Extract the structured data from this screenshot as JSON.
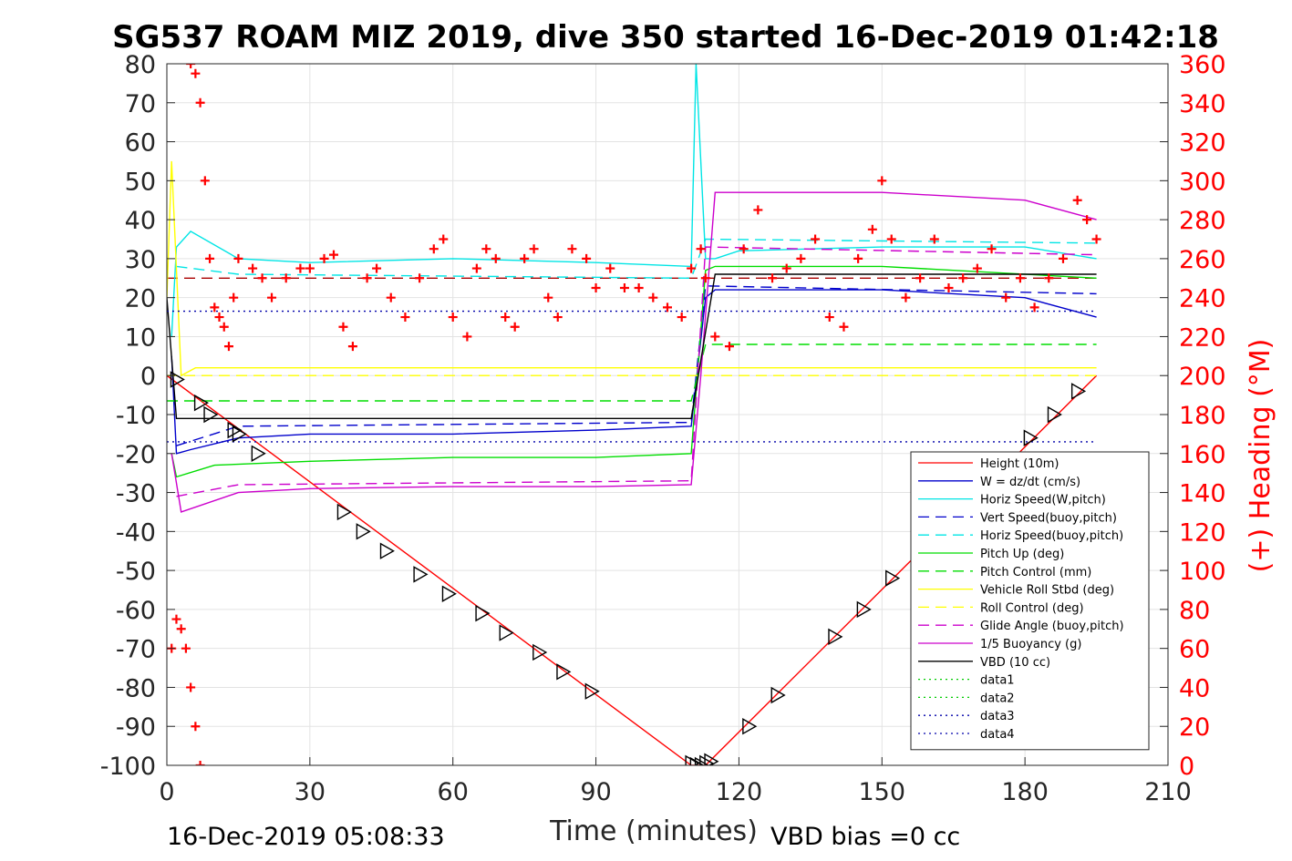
{
  "chart_data": {
    "type": "line",
    "title": "SG537 ROAM MIZ 2019, dive 350 started 16-Dec-2019 01:42:18",
    "xlabel": "Time (minutes)",
    "ylabel": "",
    "y2label": "(+) Heading (°M)",
    "xlim": [
      0,
      210
    ],
    "ylim": [
      -100,
      80
    ],
    "y2lim": [
      0,
      360
    ],
    "xticks": [
      0,
      30,
      60,
      90,
      120,
      150,
      180,
      210
    ],
    "yticks": [
      80,
      70,
      60,
      50,
      40,
      30,
      20,
      10,
      0,
      -10,
      -20,
      -30,
      -40,
      -50,
      -60,
      -70,
      -80,
      -90,
      -100
    ],
    "y2ticks": [
      360,
      340,
      320,
      300,
      280,
      260,
      240,
      220,
      200,
      180,
      160,
      140,
      120,
      100,
      80,
      60,
      40,
      20,
      0
    ],
    "grid": true,
    "legend_position": "bottom-right",
    "footer_left": "16-Dec-2019 05:08:33",
    "footer_right": "VBD bias =0 cc",
    "series": [
      {
        "name": "Height (10m)",
        "color": "#ff0000",
        "style": "solid",
        "x": [
          0,
          110,
          111,
          113,
          195
        ],
        "y": [
          0,
          -100,
          -100,
          -100,
          0
        ]
      },
      {
        "name": "W = dz/dt (cm/s)",
        "color": "#0000cc",
        "style": "solid",
        "x": [
          1,
          2,
          5,
          15,
          30,
          60,
          90,
          110,
          113,
          115,
          120,
          150,
          180,
          195
        ],
        "y": [
          5,
          -20,
          -19,
          -16,
          -15,
          -15,
          -14,
          -13,
          20,
          22,
          22,
          22,
          20,
          15
        ]
      },
      {
        "name": "Horiz Speed(W,pitch)",
        "color": "#00e5e5",
        "style": "solid",
        "x": [
          1,
          2,
          5,
          15,
          30,
          60,
          90,
          110,
          111,
          113,
          115,
          120,
          150,
          180,
          195
        ],
        "y": [
          10,
          33,
          37,
          30,
          29,
          30,
          29,
          28,
          80,
          30,
          30,
          32,
          33,
          33,
          30
        ]
      },
      {
        "name": "Vert Speed(buoy,pitch)",
        "color": "#0000cc",
        "style": "dashed",
        "x": [
          2,
          15,
          110,
          113,
          195
        ],
        "y": [
          -18,
          -13,
          -12,
          23,
          21
        ]
      },
      {
        "name": "Horiz Speed(buoy,pitch)",
        "color": "#00e5e5",
        "style": "dashed",
        "x": [
          2,
          15,
          110,
          113,
          195
        ],
        "y": [
          28,
          26,
          25,
          35,
          34
        ]
      },
      {
        "name": "Pitch Up (deg)",
        "color": "#00dd00",
        "style": "solid",
        "x": [
          1,
          2,
          10,
          30,
          60,
          90,
          110,
          113,
          115,
          150,
          195
        ],
        "y": [
          -20,
          -26,
          -23,
          -22,
          -21,
          -21,
          -20,
          27,
          28,
          28,
          25
        ]
      },
      {
        "name": "Pitch Control (mm)",
        "color": "#00dd00",
        "style": "dashed",
        "x": [
          0,
          110,
          113,
          195
        ],
        "y": [
          -6.5,
          -6.5,
          8,
          8
        ]
      },
      {
        "name": "Vehicle Roll Stbd (deg)",
        "color": "#ffff00",
        "style": "solid",
        "x": [
          0,
          1,
          3,
          6,
          30,
          60,
          90,
          110,
          113,
          150,
          195
        ],
        "y": [
          20,
          55,
          0,
          2,
          2,
          2,
          2,
          2,
          2,
          2,
          2
        ]
      },
      {
        "name": "Roll Control (deg)",
        "color": "#ffff00",
        "style": "dashed",
        "x": [
          0,
          195
        ],
        "y": [
          0,
          0
        ]
      },
      {
        "name": "Glide Angle (buoy,pitch)",
        "color": "#cc00cc",
        "style": "dashed",
        "x": [
          2,
          15,
          110,
          113,
          195
        ],
        "y": [
          -31,
          -28,
          -27,
          33,
          31
        ]
      },
      {
        "name": "1/5 Buoyancy (g)",
        "color": "#cc00cc",
        "style": "solid",
        "x": [
          1,
          3,
          15,
          30,
          60,
          90,
          110,
          112,
          115,
          150,
          180,
          195
        ],
        "y": [
          -20,
          -35,
          -30,
          -29,
          -28.5,
          -28.5,
          -28,
          0,
          47,
          47,
          45,
          40
        ]
      },
      {
        "name": "VBD (10 cc)",
        "color": "#000000",
        "style": "solid",
        "x": [
          0,
          2,
          110,
          115,
          195
        ],
        "y": [
          20,
          -11,
          -11,
          26,
          26
        ]
      },
      {
        "name": "data1",
        "color": "#00cc00",
        "style": "dotted",
        "x": [],
        "y": []
      },
      {
        "name": "data2",
        "color": "#00cc00",
        "style": "dotted",
        "x": [],
        "y": []
      },
      {
        "name": "data3",
        "color": "#0000aa",
        "style": "dotted",
        "x": [
          0,
          195
        ],
        "y": [
          16.5,
          16.5
        ]
      },
      {
        "name": "data4",
        "color": "#0000aa",
        "style": "dotted",
        "x": [
          0,
          195
        ],
        "y": [
          -17,
          -17
        ]
      }
    ],
    "extra_lines": [
      {
        "color": "#aa0000",
        "style": "dashed",
        "x": [
          0,
          195
        ],
        "y": [
          25,
          25
        ]
      }
    ],
    "heading": {
      "name": "(+) Heading",
      "axis": "right",
      "color": "#ff0000",
      "marker": "+",
      "x": [
        5,
        6,
        7,
        8,
        9,
        10,
        11,
        12,
        13,
        14,
        15,
        18,
        20,
        22,
        25,
        28,
        30,
        33,
        35,
        37,
        39,
        42,
        44,
        47,
        50,
        53,
        56,
        58,
        60,
        63,
        65,
        67,
        69,
        71,
        73,
        75,
        77,
        80,
        82,
        85,
        88,
        90,
        93,
        96,
        99,
        102,
        105,
        108,
        110,
        112,
        113,
        115,
        118,
        121,
        124,
        127,
        130,
        133,
        136,
        139,
        142,
        145,
        148,
        150,
        152,
        155,
        158,
        161,
        164,
        167,
        170,
        173,
        176,
        179,
        182,
        185,
        188,
        191,
        193,
        195
      ],
      "y": [
        360,
        355,
        340,
        300,
        260,
        235,
        230,
        225,
        215,
        240,
        260,
        255,
        250,
        240,
        250,
        255,
        255,
        260,
        262,
        225,
        215,
        250,
        255,
        240,
        230,
        250,
        265,
        270,
        230,
        220,
        255,
        265,
        260,
        230,
        225,
        260,
        265,
        240,
        230,
        265,
        260,
        245,
        255,
        245,
        245,
        240,
        235,
        230,
        255,
        265,
        250,
        220,
        215,
        265,
        285,
        250,
        255,
        260,
        270,
        230,
        225,
        260,
        275,
        300,
        270,
        240,
        250,
        270,
        245,
        250,
        255,
        265,
        240,
        250,
        235,
        250,
        260,
        290,
        280,
        270
      ]
    },
    "heading_early_drop": {
      "x": [
        1,
        2,
        3,
        4,
        5,
        6,
        7
      ],
      "y": [
        60,
        75,
        70,
        60,
        40,
        20,
        0
      ]
    },
    "markers": {
      "name": "triangles",
      "color": "#000000",
      "x": [
        2,
        7,
        9,
        14,
        15,
        19,
        37,
        41,
        46,
        53,
        59,
        66,
        71,
        78,
        83,
        89,
        110,
        111,
        112,
        113,
        114,
        122,
        128,
        140,
        146,
        152,
        181,
        186,
        191
      ],
      "y": [
        -1,
        -7,
        -10,
        -14,
        -15,
        -20,
        -35,
        -40,
        -45,
        -51,
        -56,
        -61,
        -66,
        -71,
        -76,
        -81,
        -99.5,
        -100,
        -100,
        -99.5,
        -99,
        -90,
        -82,
        -67,
        -60,
        -52,
        -16,
        -10,
        -4
      ]
    }
  }
}
